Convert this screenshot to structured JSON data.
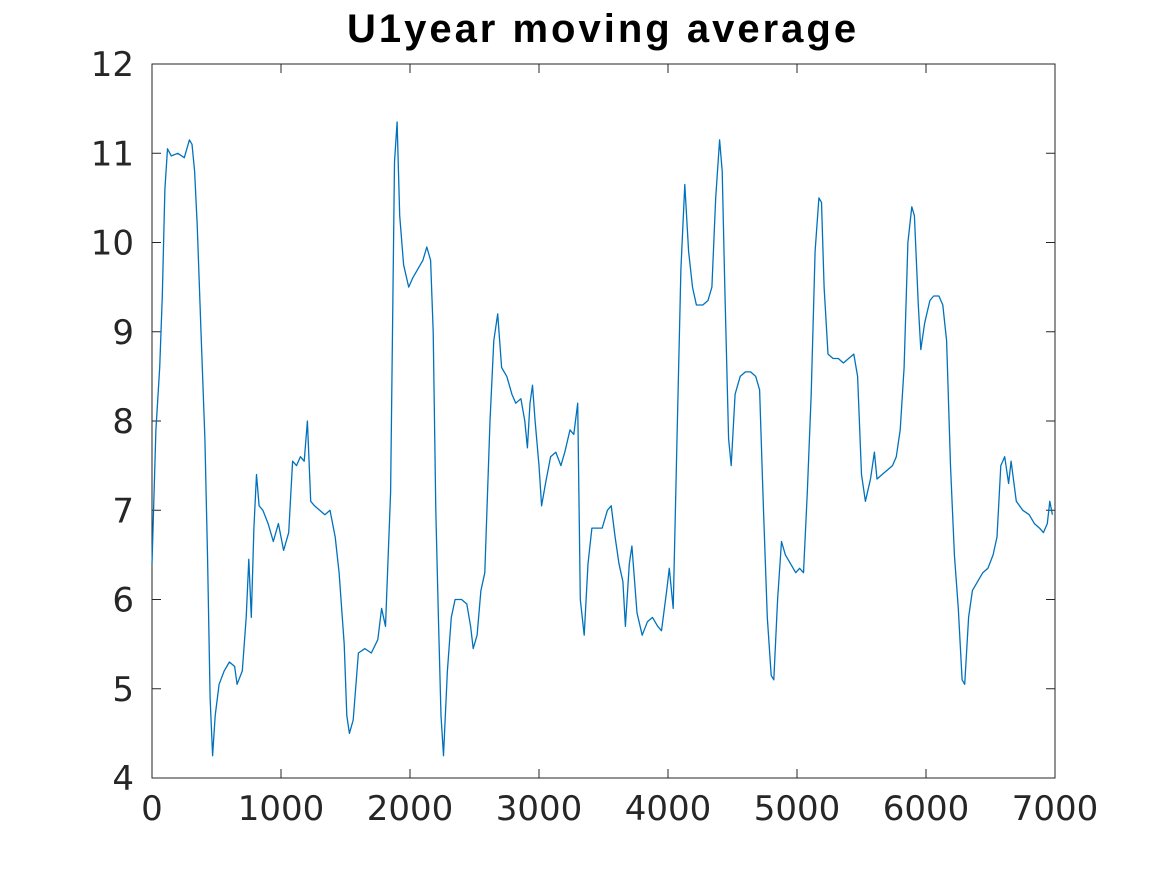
{
  "chart_data": {
    "type": "line",
    "title": "U1year moving average",
    "xlabel": "",
    "ylabel": "",
    "xlim": [
      0,
      7000
    ],
    "ylim": [
      4,
      12
    ],
    "xticks": [
      0,
      1000,
      2000,
      3000,
      4000,
      5000,
      6000,
      7000
    ],
    "yticks": [
      4,
      5,
      6,
      7,
      8,
      9,
      10,
      11,
      12
    ],
    "grid": false,
    "series": [
      {
        "color": "#0072bd",
        "points": [
          [
            0,
            6.4
          ],
          [
            30,
            7.9
          ],
          [
            60,
            8.6
          ],
          [
            80,
            9.4
          ],
          [
            100,
            10.6
          ],
          [
            120,
            11.05
          ],
          [
            150,
            10.97
          ],
          [
            200,
            11.0
          ],
          [
            250,
            10.95
          ],
          [
            290,
            11.15
          ],
          [
            310,
            11.1
          ],
          [
            330,
            10.8
          ],
          [
            350,
            10.2
          ],
          [
            380,
            9.0
          ],
          [
            410,
            7.8
          ],
          [
            430,
            6.5
          ],
          [
            450,
            4.9
          ],
          [
            470,
            4.25
          ],
          [
            490,
            4.7
          ],
          [
            520,
            5.05
          ],
          [
            560,
            5.2
          ],
          [
            600,
            5.3
          ],
          [
            640,
            5.25
          ],
          [
            660,
            5.05
          ],
          [
            700,
            5.2
          ],
          [
            730,
            5.8
          ],
          [
            750,
            6.45
          ],
          [
            770,
            5.8
          ],
          [
            790,
            6.8
          ],
          [
            810,
            7.4
          ],
          [
            830,
            7.05
          ],
          [
            860,
            7.0
          ],
          [
            900,
            6.85
          ],
          [
            940,
            6.65
          ],
          [
            980,
            6.85
          ],
          [
            1020,
            6.55
          ],
          [
            1060,
            6.75
          ],
          [
            1090,
            7.55
          ],
          [
            1120,
            7.5
          ],
          [
            1150,
            7.6
          ],
          [
            1180,
            7.55
          ],
          [
            1205,
            8.0
          ],
          [
            1230,
            7.1
          ],
          [
            1260,
            7.05
          ],
          [
            1300,
            7.0
          ],
          [
            1340,
            6.95
          ],
          [
            1380,
            7.0
          ],
          [
            1420,
            6.7
          ],
          [
            1450,
            6.3
          ],
          [
            1490,
            5.5
          ],
          [
            1510,
            4.7
          ],
          [
            1530,
            4.5
          ],
          [
            1560,
            4.65
          ],
          [
            1600,
            5.4
          ],
          [
            1650,
            5.45
          ],
          [
            1700,
            5.4
          ],
          [
            1750,
            5.55
          ],
          [
            1780,
            5.9
          ],
          [
            1810,
            5.7
          ],
          [
            1850,
            7.2
          ],
          [
            1880,
            10.9
          ],
          [
            1900,
            11.35
          ],
          [
            1920,
            10.3
          ],
          [
            1950,
            9.75
          ],
          [
            1990,
            9.5
          ],
          [
            2020,
            9.6
          ],
          [
            2060,
            9.7
          ],
          [
            2100,
            9.8
          ],
          [
            2130,
            9.95
          ],
          [
            2160,
            9.8
          ],
          [
            2180,
            9.0
          ],
          [
            2200,
            7.0
          ],
          [
            2220,
            5.8
          ],
          [
            2240,
            4.7
          ],
          [
            2260,
            4.25
          ],
          [
            2290,
            5.2
          ],
          [
            2320,
            5.8
          ],
          [
            2350,
            6.0
          ],
          [
            2400,
            6.0
          ],
          [
            2440,
            5.95
          ],
          [
            2470,
            5.7
          ],
          [
            2490,
            5.45
          ],
          [
            2520,
            5.6
          ],
          [
            2550,
            6.1
          ],
          [
            2580,
            6.3
          ],
          [
            2620,
            8.0
          ],
          [
            2650,
            8.9
          ],
          [
            2680,
            9.2
          ],
          [
            2710,
            8.6
          ],
          [
            2750,
            8.5
          ],
          [
            2790,
            8.3
          ],
          [
            2820,
            8.2
          ],
          [
            2860,
            8.25
          ],
          [
            2890,
            8.0
          ],
          [
            2910,
            7.7
          ],
          [
            2930,
            8.2
          ],
          [
            2950,
            8.4
          ],
          [
            2970,
            8.0
          ],
          [
            3000,
            7.5
          ],
          [
            3020,
            7.05
          ],
          [
            3050,
            7.3
          ],
          [
            3090,
            7.6
          ],
          [
            3130,
            7.65
          ],
          [
            3170,
            7.5
          ],
          [
            3200,
            7.65
          ],
          [
            3240,
            7.9
          ],
          [
            3270,
            7.85
          ],
          [
            3300,
            8.2
          ],
          [
            3320,
            6.0
          ],
          [
            3350,
            5.6
          ],
          [
            3380,
            6.4
          ],
          [
            3410,
            6.8
          ],
          [
            3450,
            6.8
          ],
          [
            3490,
            6.8
          ],
          [
            3530,
            7.0
          ],
          [
            3560,
            7.05
          ],
          [
            3590,
            6.7
          ],
          [
            3620,
            6.4
          ],
          [
            3650,
            6.2
          ],
          [
            3670,
            5.7
          ],
          [
            3700,
            6.4
          ],
          [
            3720,
            6.6
          ],
          [
            3760,
            5.85
          ],
          [
            3800,
            5.6
          ],
          [
            3840,
            5.75
          ],
          [
            3880,
            5.8
          ],
          [
            3920,
            5.7
          ],
          [
            3950,
            5.65
          ],
          [
            3990,
            6.1
          ],
          [
            4010,
            6.35
          ],
          [
            4040,
            5.9
          ],
          [
            4070,
            7.8
          ],
          [
            4100,
            9.7
          ],
          [
            4130,
            10.65
          ],
          [
            4160,
            9.9
          ],
          [
            4190,
            9.5
          ],
          [
            4220,
            9.3
          ],
          [
            4270,
            9.3
          ],
          [
            4310,
            9.35
          ],
          [
            4340,
            9.5
          ],
          [
            4370,
            10.5
          ],
          [
            4400,
            11.15
          ],
          [
            4420,
            10.8
          ],
          [
            4440,
            9.5
          ],
          [
            4470,
            7.8
          ],
          [
            4490,
            7.5
          ],
          [
            4520,
            8.3
          ],
          [
            4560,
            8.5
          ],
          [
            4600,
            8.55
          ],
          [
            4640,
            8.55
          ],
          [
            4680,
            8.5
          ],
          [
            4710,
            8.35
          ],
          [
            4740,
            7.0
          ],
          [
            4770,
            5.8
          ],
          [
            4800,
            5.15
          ],
          [
            4820,
            5.1
          ],
          [
            4850,
            6.0
          ],
          [
            4880,
            6.65
          ],
          [
            4910,
            6.5
          ],
          [
            4950,
            6.4
          ],
          [
            4990,
            6.3
          ],
          [
            5020,
            6.35
          ],
          [
            5050,
            6.3
          ],
          [
            5080,
            7.2
          ],
          [
            5110,
            8.3
          ],
          [
            5140,
            9.9
          ],
          [
            5170,
            10.5
          ],
          [
            5190,
            10.45
          ],
          [
            5210,
            9.5
          ],
          [
            5240,
            8.75
          ],
          [
            5280,
            8.7
          ],
          [
            5320,
            8.7
          ],
          [
            5360,
            8.65
          ],
          [
            5400,
            8.7
          ],
          [
            5440,
            8.75
          ],
          [
            5470,
            8.5
          ],
          [
            5500,
            7.4
          ],
          [
            5530,
            7.1
          ],
          [
            5570,
            7.35
          ],
          [
            5600,
            7.65
          ],
          [
            5620,
            7.35
          ],
          [
            5660,
            7.4
          ],
          [
            5700,
            7.45
          ],
          [
            5740,
            7.5
          ],
          [
            5770,
            7.6
          ],
          [
            5800,
            7.9
          ],
          [
            5830,
            8.6
          ],
          [
            5860,
            10.0
          ],
          [
            5890,
            10.4
          ],
          [
            5910,
            10.3
          ],
          [
            5940,
            9.3
          ],
          [
            5960,
            8.8
          ],
          [
            5990,
            9.1
          ],
          [
            6030,
            9.35
          ],
          [
            6060,
            9.4
          ],
          [
            6100,
            9.4
          ],
          [
            6130,
            9.3
          ],
          [
            6160,
            8.9
          ],
          [
            6190,
            7.5
          ],
          [
            6220,
            6.5
          ],
          [
            6250,
            5.9
          ],
          [
            6280,
            5.1
          ],
          [
            6300,
            5.05
          ],
          [
            6330,
            5.8
          ],
          [
            6360,
            6.1
          ],
          [
            6400,
            6.2
          ],
          [
            6440,
            6.3
          ],
          [
            6480,
            6.35
          ],
          [
            6520,
            6.5
          ],
          [
            6550,
            6.7
          ],
          [
            6580,
            7.5
          ],
          [
            6610,
            7.6
          ],
          [
            6640,
            7.3
          ],
          [
            6660,
            7.55
          ],
          [
            6700,
            7.1
          ],
          [
            6750,
            7.0
          ],
          [
            6800,
            6.95
          ],
          [
            6840,
            6.85
          ],
          [
            6880,
            6.8
          ],
          [
            6910,
            6.75
          ],
          [
            6940,
            6.85
          ],
          [
            6960,
            7.1
          ],
          [
            6980,
            6.95
          ]
        ]
      }
    ]
  }
}
